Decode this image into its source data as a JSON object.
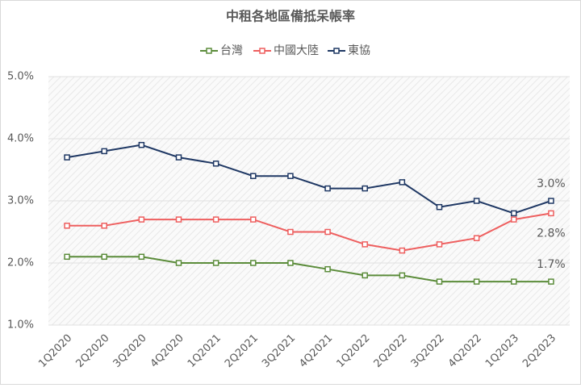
{
  "chart_data": {
    "type": "line",
    "title": "中租各地區備抵呆帳率",
    "categories": [
      "1Q2020",
      "2Q2020",
      "3Q2020",
      "4Q2020",
      "1Q2021",
      "2Q2021",
      "3Q2021",
      "4Q2021",
      "1Q2022",
      "2Q2022",
      "3Q2022",
      "4Q2022",
      "1Q2023",
      "2Q2023"
    ],
    "series": [
      {
        "name": "台灣",
        "color": "#5b8c3a",
        "values": [
          2.1,
          2.1,
          2.1,
          2.0,
          2.0,
          2.0,
          2.0,
          1.9,
          1.8,
          1.8,
          1.7,
          1.7,
          1.7,
          1.7
        ],
        "value_labels": [
          null,
          null,
          null,
          null,
          null,
          null,
          null,
          null,
          null,
          null,
          null,
          null,
          null,
          "1.7%"
        ]
      },
      {
        "name": "中國大陸",
        "color": "#ee5f5f",
        "values": [
          2.6,
          2.6,
          2.7,
          2.7,
          2.7,
          2.7,
          2.5,
          2.5,
          2.3,
          2.2,
          2.3,
          2.4,
          2.7,
          2.8
        ],
        "value_labels": [
          null,
          null,
          null,
          null,
          null,
          null,
          null,
          null,
          null,
          null,
          null,
          null,
          null,
          "2.8%"
        ]
      },
      {
        "name": "東協",
        "color": "#1f3864",
        "values": [
          3.7,
          3.8,
          3.9,
          3.7,
          3.6,
          3.4,
          3.4,
          3.2,
          3.2,
          3.3,
          2.9,
          3.0,
          2.8,
          3.0
        ],
        "value_labels": [
          null,
          null,
          null,
          null,
          null,
          null,
          null,
          null,
          null,
          null,
          null,
          null,
          null,
          "3.0%"
        ]
      }
    ],
    "ylim": [
      1,
      5
    ],
    "yticks": [
      {
        "value": 1,
        "label": "1.0%"
      },
      {
        "value": 2,
        "label": "2.0%"
      },
      {
        "value": 3,
        "label": "3.0%"
      },
      {
        "value": 4,
        "label": "4.0%"
      },
      {
        "value": 5,
        "label": "5.0%"
      }
    ],
    "legend": "top"
  }
}
